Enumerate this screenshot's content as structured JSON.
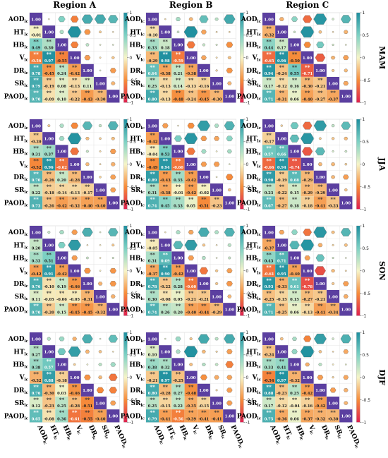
{
  "chart_data": {
    "type": "heatmap",
    "variables": [
      "AOD",
      "HT",
      "HB",
      "V",
      "DR",
      "SR",
      "PAOD"
    ],
    "subscript": "lc",
    "regions": [
      "Region A",
      "Region B",
      "Region C"
    ],
    "seasons": [
      "MAM",
      "JJA",
      "SON",
      "DJF"
    ],
    "colorbar": {
      "min": -1,
      "max": 1,
      "ticks": [
        "1",
        "0.5",
        "0",
        "-0.5",
        "-1"
      ]
    },
    "significance_marker": "**",
    "diagonal_value": "1.00",
    "panels": [
      {
        "season": "MAM",
        "region": "Region A",
        "lower": [
          [
            -0.01
          ],
          [
            0.49,
            0.3
          ],
          [
            -0.56,
            0.97,
            -0.55
          ],
          [
            0.78,
            -0.45,
            0.24,
            -0.42
          ],
          [
            0.79,
            -0.19,
            0.08,
            -0.13,
            0.11
          ],
          [
            0.7,
            -0.09,
            0.1,
            -0.22,
            -0.43,
            -0.3
          ]
        ]
      },
      {
        "season": "MAM",
        "region": "Region B",
        "lower": [
          [
            -0.1
          ],
          [
            0.33,
            0.18
          ],
          [
            -0.29,
            0.98,
            -0.59
          ],
          [
            0.64,
            -0.38,
            0.21,
            -0.38
          ],
          [
            0.25,
            -0.13,
            0.14,
            -0.13,
            -0.16
          ],
          [
            0.8,
            -0.13,
            -0.48,
            -0.24,
            -0.45,
            -0.3
          ]
        ]
      },
      {
        "season": "MAM",
        "region": "Region C",
        "lower": [
          [
            -0.32
          ],
          [
            0.44,
            0.17
          ],
          [
            -0.65,
            0.96,
            -0.5
          ],
          [
            0.94,
            -0.24,
            0.55,
            -0.71
          ],
          [
            0.17,
            -0.12,
            0.16,
            -0.3,
            -0.21
          ],
          [
            0.71,
            -0.31,
            0.06,
            -0.4,
            -0.27,
            -0.37
          ]
        ]
      },
      {
        "season": "JJA",
        "region": "Region A",
        "lower": [
          [
            -0.2
          ],
          [
            0.31,
            0.37
          ],
          [
            -0.52,
            0.96,
            -0.62
          ],
          [
            0.7,
            -0.26,
            0.2,
            -0.28
          ],
          [
            0.22,
            -0.18,
            -0.14,
            -0.13,
            -0.17
          ],
          [
            0.73,
            -0.26,
            -0.42,
            -0.32,
            -0.4,
            -0.4
          ]
        ]
      },
      {
        "season": "JJA",
        "region": "Region B",
        "lower": [
          [
            -0.42
          ],
          [
            -0.04,
            0.53
          ],
          [
            -0.49,
            0.94,
            -0.6
          ],
          [
            0.89,
            -0.43,
            0.35,
            -0.42
          ],
          [
            0.31,
            -0.38,
            -0.01,
            -0.42,
            -0.02
          ],
          [
            0.74,
            0.45,
            0.33,
            0.05,
            -0.51,
            -0.23
          ]
        ]
      },
      {
        "season": "JJA",
        "region": "Region C",
        "lower": [
          [
            -0.17
          ],
          [
            0.57,
            0.66
          ],
          [
            -0.66,
            0.94,
            -0.74
          ],
          [
            0.9,
            -0.19,
            0.68,
            -0.29
          ],
          [
            0.23,
            -0.22,
            0.15,
            -0.29,
            -0.29
          ],
          [
            0.67,
            -0.27,
            0.18,
            -0.18,
            -0.41,
            -0.23
          ]
        ]
      },
      {
        "season": "SON",
        "region": "Region A",
        "lower": [
          [
            0.2
          ],
          [
            0.33,
            0.51
          ],
          [
            -0.42,
            0.91,
            -0.42
          ],
          [
            0.76,
            -0.1,
            0.19,
            -0.46
          ],
          [
            0.11,
            -0.05,
            -0.06,
            -0.05,
            -0.31
          ],
          [
            0.7,
            -0.2,
            0.15,
            -0.45,
            -0.45,
            -0.32
          ]
        ]
      },
      {
        "season": "SON",
        "region": "Region B",
        "lower": [
          [
            -0.05
          ],
          [
            0.31,
            0.69
          ],
          [
            -0.37,
            0.9,
            -0.42
          ],
          [
            0.78,
            -0.22,
            0.28,
            -0.6
          ],
          [
            0.3,
            -0.08,
            0.05,
            -0.21,
            -0.21
          ],
          [
            0.74,
            0.26,
            0.2,
            -0.4,
            -0.44,
            -0.29
          ]
        ]
      },
      {
        "season": "SON",
        "region": "Region C",
        "lower": [
          [
            -0.37
          ],
          [
            0.43,
            0.71
          ],
          [
            -0.61,
            0.95,
            -0.4
          ],
          [
            0.93,
            -0.33,
            0.61,
            -0.78
          ],
          [
            -0.25,
            -0.15,
            0.15,
            -0.27,
            -0.21
          ],
          [
            0.71,
            -0.25,
            0.06,
            -0.13,
            -0.41,
            -0.34
          ]
        ]
      },
      {
        "season": "DJF",
        "region": "Region A",
        "lower": [
          [
            0.27
          ],
          [
            0.38,
            0.57
          ],
          [
            -0.32,
            0.88,
            -0.18
          ],
          [
            0.76,
            -0.3,
            0.03,
            -0.46
          ],
          [
            0.12,
            -0.23,
            0.25,
            -0.28,
            -0.51
          ],
          [
            0.65,
            -0.08,
            0.36,
            -0.61,
            -0.55,
            -0.4
          ]
        ]
      },
      {
        "season": "DJF",
        "region": "Region B",
        "lower": [
          [
            0.1
          ],
          [
            0.38,
            0.32
          ],
          [
            -0.21,
            0.97,
            -0.25
          ],
          [
            0.8,
            -0.28,
            0.27,
            -0.48
          ],
          [
            0.25,
            -0.15,
            0.22,
            -0.35,
            -0.15
          ],
          [
            0.79,
            -0.41,
            -0.56,
            -0.39,
            -0.41,
            -0.41
          ]
        ]
      },
      {
        "season": "DJF",
        "region": "Region C",
        "lower": [
          [
            -0.24
          ],
          [
            0.33,
            0.41
          ],
          [
            -0.54,
            0.97,
            -0.32
          ],
          [
            0.88,
            -0.23,
            0.25,
            -0.42
          ],
          [
            0.17,
            -0.12,
            -0.04,
            -0.16,
            -0.42
          ],
          [
            0.75,
            -0.36,
            0.06,
            -0.37,
            -0.32,
            -0.3
          ]
        ]
      }
    ]
  }
}
